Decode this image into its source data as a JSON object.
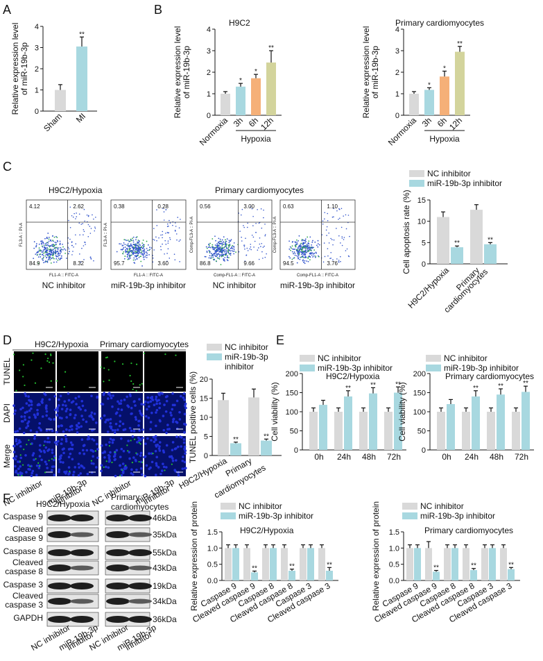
{
  "colors": {
    "gray": "#d9d9d9",
    "cyan": "#a8d8e0",
    "orange": "#f5b078",
    "olive": "#d3d49c",
    "flow": "#3355cc",
    "band": "#6a6a6a",
    "tunel": "#24c030",
    "dapi": "#2030d8"
  },
  "panels": {
    "A": "A",
    "B": "B",
    "C": "C",
    "D": "D",
    "E": "E",
    "F": "F"
  },
  "panelA": {
    "chart_data": {
      "type": "bar",
      "categories": [
        "Sham",
        "MI"
      ],
      "values": [
        1.0,
        3.05
      ],
      "errors": [
        0.25,
        0.45
      ],
      "significance": [
        "",
        "**"
      ],
      "ylabel": [
        "Relative expression level",
        "of miR-19b-3p"
      ],
      "ylim": [
        0,
        4
      ],
      "yticks": [
        "0",
        "1",
        "2",
        "3",
        "4"
      ]
    }
  },
  "panelB": [
    {
      "chart_data": {
        "type": "bar",
        "title": "H9C2",
        "categories": [
          "Normoxia",
          "3h",
          "6h",
          "12h"
        ],
        "values": [
          1.0,
          1.33,
          1.72,
          2.45
        ],
        "errors": [
          0.1,
          0.15,
          0.18,
          0.55
        ],
        "significance": [
          "",
          "*",
          "*",
          "**"
        ],
        "ylabel": [
          "Relative expression level",
          "of miR-19b-3p"
        ],
        "ylim": [
          0,
          4
        ],
        "yticks": [
          "0",
          "1",
          "2",
          "3",
          "4"
        ],
        "group_label": "Hypoxia"
      }
    },
    {
      "chart_data": {
        "type": "bar",
        "title": "Primary cardiomyocytes",
        "categories": [
          "Normoxia",
          "3h",
          "6h",
          "12h"
        ],
        "values": [
          1.0,
          1.18,
          1.8,
          2.95
        ],
        "errors": [
          0.1,
          0.1,
          0.25,
          0.25
        ],
        "significance": [
          "",
          "*",
          "*",
          "**"
        ],
        "ylabel": [
          "Relative expression level",
          "of miR-19b-3p"
        ],
        "ylim": [
          0,
          4
        ],
        "yticks": [
          "0",
          "1",
          "2",
          "3",
          "4"
        ],
        "group_label": "Hypoxia"
      }
    }
  ],
  "panelC": {
    "titles": [
      "H9C2/Hypoxia",
      "Primary cardiomyocytes"
    ],
    "plots": [
      {
        "caption": "NC inhibitor",
        "q": [
          "4.12",
          "2.62",
          "84.9",
          "8.32"
        ],
        "xlab": "FL1-A :: FITC-A",
        "ylab": "FL3-A :: PI-A"
      },
      {
        "caption": "miR-19b-3p inhibitor",
        "q": [
          "0.38",
          "0.28",
          "95.7",
          "3.60"
        ],
        "xlab": "FL1-A :: FITC-A",
        "ylab": "FL3-A :: PI-A"
      },
      {
        "caption": "NC inhibitor",
        "q": [
          "0.56",
          "3.00",
          "86.8",
          "9.66"
        ],
        "xlab": "Comp-FL1-A :: FITC-A",
        "ylab": "Comp-FL3-A :: PI-A"
      },
      {
        "caption": "miR-19b-3p inhibitor",
        "q": [
          "0.63",
          "1.10",
          "94.5",
          "3.76"
        ],
        "xlab": "Comp-FL1-A :: FITC-A",
        "ylab": "Comp-FL3-A :: PI-A"
      }
    ],
    "chart_data": {
      "type": "bar",
      "categories": [
        "H9C2/Hypoxia",
        "Primary cardiomyocytes"
      ],
      "series": [
        {
          "name": "NC inhibitor",
          "values": [
            11.0,
            12.7
          ],
          "errors": [
            1.2,
            1.2
          ]
        },
        {
          "name": "miR-19b-3p inhibitor",
          "values": [
            3.9,
            4.6
          ],
          "errors": [
            0.3,
            0.4
          ]
        }
      ],
      "significance": "**",
      "ylabel": "Cell apoptosis rate (%)",
      "ylim": [
        0,
        15
      ],
      "yticks": [
        "0",
        "5",
        "10",
        "15"
      ]
    }
  },
  "panelD": {
    "titles": [
      "H9C2/Hypoxia",
      "Primary cardiomyocytes"
    ],
    "rows": [
      "TUNEL",
      "DAPI",
      "Merge"
    ],
    "captions": [
      "NC inhibitor",
      "miR-19b-3p inhibitor",
      "NC inhibitor",
      "miR-19b-3p inhibitor"
    ],
    "chart_data": {
      "type": "bar",
      "categories": [
        "H9C2/Hypoxia",
        "Primary cardiomyocytes"
      ],
      "series": [
        {
          "name": "NC inhibitor",
          "values": [
            14.5,
            15.2
          ],
          "errors": [
            1.8,
            2.2
          ]
        },
        {
          "name": "miR-19b-3p inhibitor",
          "values": [
            3.2,
            3.9
          ],
          "errors": [
            0.3,
            0.4
          ]
        }
      ],
      "significance": "**",
      "ylabel": "TUNEL positive cells (%)",
      "ylim": [
        0,
        20
      ],
      "yticks": [
        "0",
        "5",
        "10",
        "15",
        "20"
      ],
      "legend": [
        "NC inhibitor",
        "miR-19b-3p",
        "inhibitor"
      ]
    }
  },
  "panelE": [
    {
      "chart_data": {
        "type": "bar",
        "title": "H9C2/Hypoxia",
        "categories": [
          "0h",
          "24h",
          "48h",
          "72h"
        ],
        "series": [
          {
            "name": "NC inhibitor",
            "values": [
              100,
              100,
              100,
              100
            ],
            "errors": [
              10,
              10,
              10,
              10
            ]
          },
          {
            "name": "miR-19b-3p inhibitor",
            "values": [
              118,
              140,
              148,
              150
            ],
            "errors": [
              12,
              15,
              15,
              15
            ]
          }
        ],
        "significance": [
          "",
          "**",
          "**",
          "**"
        ],
        "ylabel": "Cell viability (%)",
        "ylim": [
          0,
          200
        ],
        "yticks": [
          "0",
          "50",
          "100",
          "150",
          "200"
        ]
      }
    },
    {
      "chart_data": {
        "type": "bar",
        "title": "Primary cardiomyocytes",
        "categories": [
          "0h",
          "24h",
          "48h",
          "72h"
        ],
        "series": [
          {
            "name": "NC inhibitor",
            "values": [
              100,
              100,
              100,
              100
            ],
            "errors": [
              10,
              10,
              10,
              10
            ]
          },
          {
            "name": "miR-19b-3p inhibitor",
            "values": [
              120,
              140,
              145,
              152
            ],
            "errors": [
              12,
              15,
              15,
              15
            ]
          }
        ],
        "significance": [
          "",
          "**",
          "**",
          "**"
        ],
        "ylabel": "Cell viability (%)",
        "ylim": [
          0,
          200
        ],
        "yticks": [
          "0",
          "50",
          "100",
          "150",
          "200"
        ]
      }
    }
  ],
  "panelF": {
    "blot_titles": [
      "H9C2/Hypoxia",
      "Primary\ncardiomyocytes"
    ],
    "bands": [
      "Caspase 9",
      "Cleaved caspase 9",
      "Caspase 8",
      "Cleaved caspase 8",
      "Caspase 3",
      "Cleaved caspase 3",
      "GAPDH"
    ],
    "band_lines": [
      [
        "Caspase 9"
      ],
      [
        "Cleaved",
        "caspase 9"
      ],
      [
        "Caspase 8"
      ],
      [
        "Cleaved",
        "caspase 8"
      ],
      [
        "Caspase 3"
      ],
      [
        "Cleaved",
        "caspase 3"
      ],
      [
        "GAPDH"
      ]
    ],
    "kda": [
      "46kDa",
      "35kDa",
      "55kDa",
      "43kDa",
      "19kDa",
      "34kDa",
      "36kDa"
    ],
    "lanes": [
      "NC inhibitor",
      "miR-19b-3p inhibitor"
    ],
    "charts": [
      {
        "chart_data": {
          "type": "bar",
          "title": "H9C2/Hypoxia",
          "categories": [
            "Caspase 9",
            "Cleaved caspase 9",
            "Caspase 8",
            "Cleaved caspase 8",
            "Caspase 3",
            "Cleaved caspase 3"
          ],
          "series": [
            {
              "name": "NC inhibitor",
              "values": [
                1.0,
                1.0,
                1.0,
                1.0,
                1.0,
                1.0
              ],
              "errors": [
                0.1,
                0.1,
                0.1,
                0.1,
                0.1,
                0.1
              ]
            },
            {
              "name": "miR-19b-3p inhibitor",
              "values": [
                1.0,
                0.25,
                1.0,
                0.3,
                1.0,
                0.3
              ],
              "errors": [
                0.1,
                0.04,
                0.1,
                0.05,
                0.1,
                0.1
              ]
            }
          ],
          "significance": [
            "",
            "**",
            "",
            "**",
            "",
            "**"
          ],
          "ylabel": "Relative expression of protein",
          "ylim": [
            0,
            1.5
          ],
          "yticks": [
            "0.0",
            "0.5",
            "1.0",
            "1.5"
          ]
        }
      },
      {
        "chart_data": {
          "type": "bar",
          "title": "Primary cardiomyocytes",
          "categories": [
            "Caspase 9",
            "Cleaved caspase 9",
            "Caspase 8",
            "Cleaved caspase 8",
            "Caspase 3",
            "Cleaved caspase 3"
          ],
          "series": [
            {
              "name": "NC inhibitor",
              "values": [
                1.0,
                1.0,
                1.0,
                1.0,
                1.0,
                1.0
              ],
              "errors": [
                0.1,
                0.2,
                0.1,
                0.1,
                0.1,
                0.1
              ]
            },
            {
              "name": "miR-19b-3p inhibitor",
              "values": [
                1.0,
                0.27,
                1.0,
                0.32,
                1.0,
                0.35
              ],
              "errors": [
                0.1,
                0.04,
                0.1,
                0.05,
                0.1,
                0.05
              ]
            }
          ],
          "significance": [
            "",
            "**",
            "",
            "**",
            "",
            "**"
          ],
          "ylabel": "Relative expression of protein",
          "ylim": [
            0,
            1.5
          ],
          "yticks": [
            "0.0",
            "0.5",
            "1.0",
            "1.5"
          ]
        }
      }
    ]
  }
}
